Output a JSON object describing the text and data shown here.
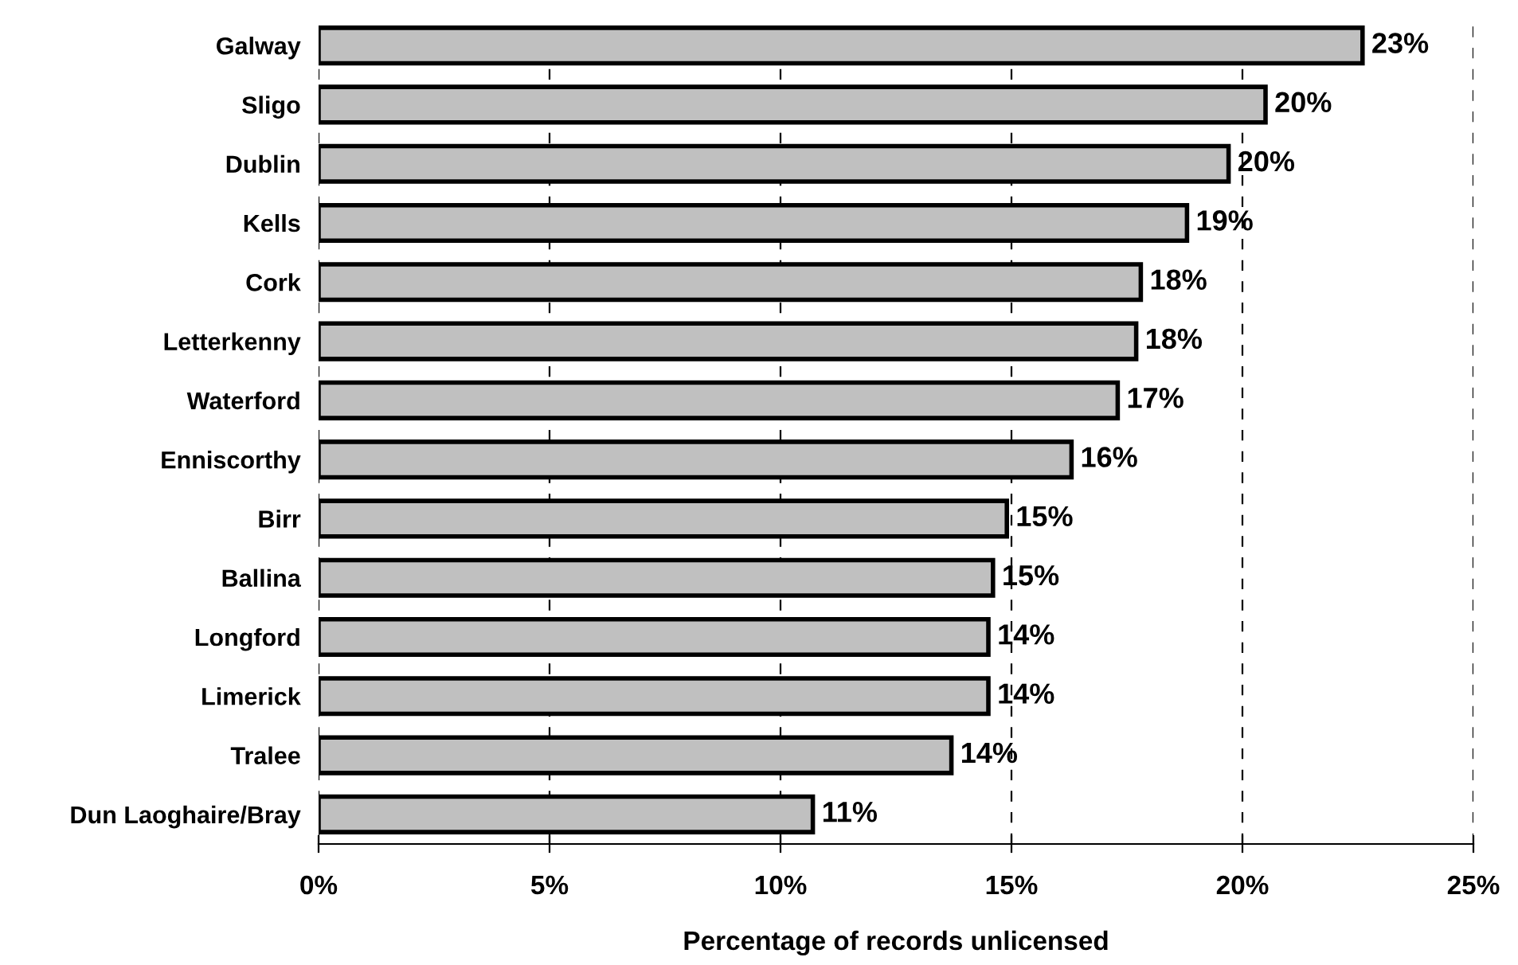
{
  "chart_data": {
    "type": "bar",
    "orientation": "horizontal",
    "xlabel": "Percentage of records unlicensed",
    "categories": [
      "Galway",
      "Sligo",
      "Dublin",
      "Kells",
      "Cork",
      "Letterkenny",
      "Waterford",
      "Enniscorthy",
      "Birr",
      "Ballina",
      "Longford",
      "Limerick",
      "Tralee",
      "Dun Laoghaire/Bray"
    ],
    "values": [
      22.6,
      20.5,
      19.7,
      18.8,
      17.8,
      17.7,
      17.3,
      16.3,
      14.9,
      14.6,
      14.5,
      14.5,
      13.7,
      10.7
    ],
    "value_labels": [
      "23%",
      "20%",
      "20%",
      "19%",
      "18%",
      "18%",
      "17%",
      "16%",
      "15%",
      "15%",
      "14%",
      "14%",
      "14%",
      "11%"
    ],
    "color": "#c0c0c0",
    "xlim": [
      0,
      25
    ],
    "xticks": [
      {
        "value": 0,
        "label": "0%"
      },
      {
        "value": 5,
        "label": "5%"
      },
      {
        "value": 10,
        "label": "10%"
      },
      {
        "value": 15,
        "label": "15%"
      },
      {
        "value": 20,
        "label": "20%"
      },
      {
        "value": 25,
        "label": "25%"
      }
    ],
    "grid": "x",
    "legend": false
  }
}
